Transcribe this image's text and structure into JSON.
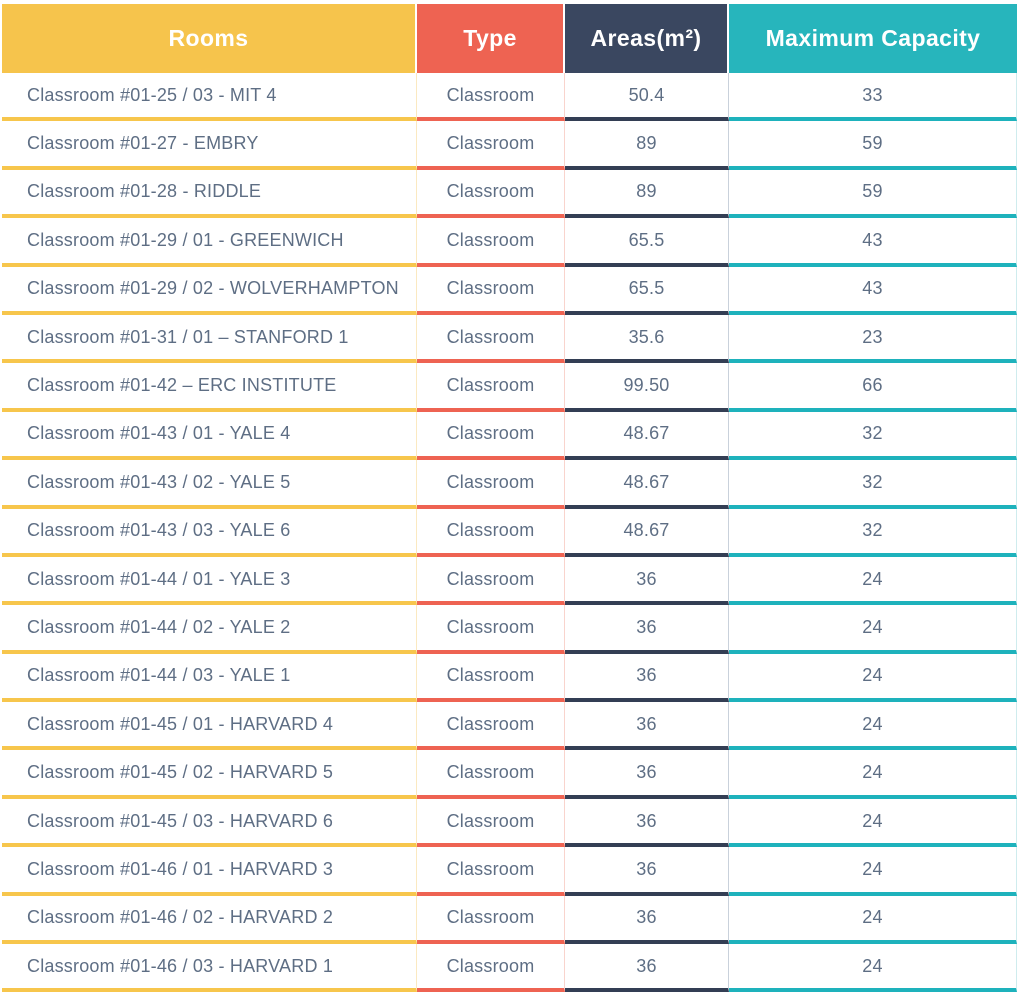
{
  "chart_data": {
    "type": "table",
    "title": "",
    "columns": [
      "Rooms",
      "Type",
      "Areas(m²)",
      "Maximum Capacity"
    ],
    "rows": [
      [
        "Classroom #01-25 / 03 - MIT 4",
        "Classroom",
        "50.4",
        "33"
      ],
      [
        "Classroom #01-27 - EMBRY",
        "Classroom",
        "89",
        "59"
      ],
      [
        "Classroom #01-28 - RIDDLE",
        "Classroom",
        "89",
        "59"
      ],
      [
        "Classroom #01-29 / 01 - GREENWICH",
        "Classroom",
        "65.5",
        "43"
      ],
      [
        "Classroom #01-29 / 02 - WOLVERHAMPTON",
        "Classroom",
        "65.5",
        "43"
      ],
      [
        "Classroom #01-31 / 01 – STANFORD 1",
        "Classroom",
        "35.6",
        "23"
      ],
      [
        "Classroom #01-42 – ERC INSTITUTE",
        "Classroom",
        "99.50",
        "66"
      ],
      [
        "Classroom #01-43 / 01 - YALE 4",
        "Classroom",
        "48.67",
        "32"
      ],
      [
        "Classroom #01-43 / 02 - YALE 5",
        "Classroom",
        "48.67",
        "32"
      ],
      [
        "Classroom #01-43 / 03 - YALE 6",
        "Classroom",
        "48.67",
        "32"
      ],
      [
        "Classroom #01-44 / 01 - YALE 3",
        "Classroom",
        "36",
        "24"
      ],
      [
        "Classroom #01-44 / 02 - YALE 2",
        "Classroom",
        "36",
        "24"
      ],
      [
        "Classroom #01-44 / 03 - YALE 1",
        "Classroom",
        "36",
        "24"
      ],
      [
        "Classroom #01-45 / 01 - HARVARD 4",
        "Classroom",
        "36",
        "24"
      ],
      [
        "Classroom #01-45 / 02 - HARVARD 5",
        "Classroom",
        "36",
        "24"
      ],
      [
        "Classroom #01-45 / 03 - HARVARD 6",
        "Classroom",
        "36",
        "24"
      ],
      [
        "Classroom #01-46 / 01 - HARVARD 3",
        "Classroom",
        "36",
        "24"
      ],
      [
        "Classroom #01-46 / 02 - HARVARD 2",
        "Classroom",
        "36",
        "24"
      ],
      [
        "Classroom #01-46 / 03 - HARVARD 1",
        "Classroom",
        "36",
        "24"
      ]
    ],
    "layout": {
      "header_text_color": "#FFFFFF",
      "body_text_color": "#5E6E84",
      "column_colors": [
        "#F6C44C",
        "#EE6352",
        "#3A4760",
        "#27B5BC"
      ],
      "row_underline_colors": [
        "#F7C64C",
        "#EE6352",
        "#333E54",
        "#1EB2BC"
      ],
      "grid": "horizontal colored underlines per column, faint vertical separators"
    }
  }
}
